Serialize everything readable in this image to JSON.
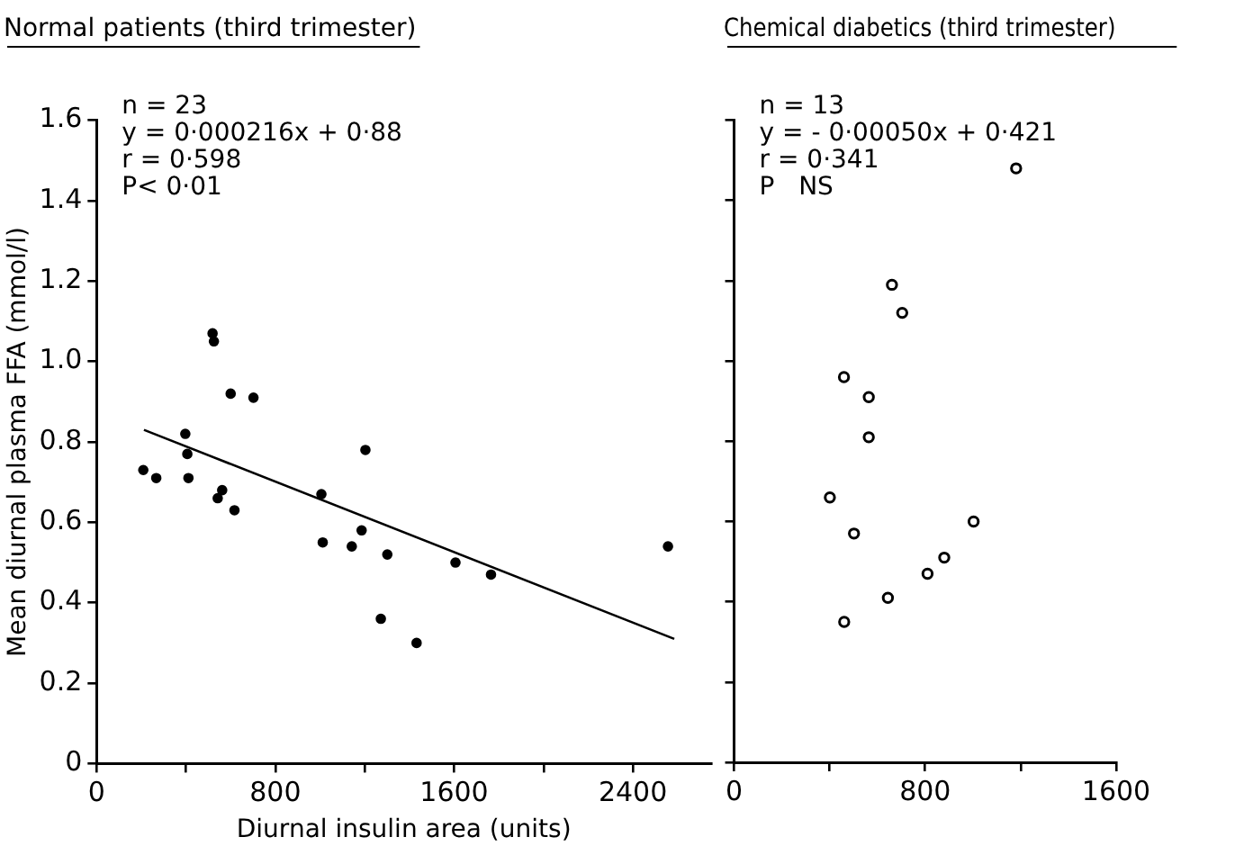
{
  "chart_data": [
    {
      "type": "scatter",
      "title": "Normal patients (third trimester)",
      "xlabel": "Diurnal insulin area (units)",
      "ylabel": "Mean diurnal plasma FFA (mmol/l)",
      "annotations": [
        "n = 23",
        "y = 0·000216x + 0·88",
        "r = 0·598",
        "P< 0·01"
      ],
      "xlim": [
        0,
        2750
      ],
      "xticks": [
        0,
        {
          "value": 400,
          "label": null
        },
        800,
        {
          "value": 1200,
          "label": null
        },
        1600,
        {
          "value": 2000,
          "label": null
        },
        2400
      ],
      "ylim": [
        0,
        1.6
      ],
      "yticks": [
        0,
        0.2,
        0.4,
        0.6,
        0.8,
        {
          "value": 1,
          "label": "1.0"
        },
        1.2,
        1.4,
        1.6
      ],
      "grid": false,
      "legend": false,
      "series": [
        {
          "marker": "circle",
          "color": "#000000",
          "x": [
            209,
            267,
            397,
            406,
            411,
            542,
            562,
            617,
            1006,
            1012,
            1142,
            1186,
            1203,
            1301,
            1272,
            1432,
            1606,
            1765,
            2557,
            519,
            525,
            600,
            702
          ],
          "values": [
            0.73,
            0.71,
            0.82,
            0.77,
            0.71,
            0.66,
            0.68,
            0.63,
            0.67,
            0.55,
            0.54,
            0.58,
            0.78,
            0.52,
            0.36,
            0.3,
            0.5,
            0.47,
            0.54,
            1.07,
            1.05,
            0.92,
            0.91
          ]
        },
        {
          "type": "line",
          "marker": "none",
          "color": "#000000",
          "x": [
            212,
            2585
          ],
          "values": [
            0.83,
            0.31
          ]
        }
      ]
    },
    {
      "type": "scatter",
      "title": "Chemical diabetics (third trimester)",
      "annotations": [
        "n = 13",
        "y = - 0·00050x + 0·421",
        "r = 0·341",
        "P   NS"
      ],
      "xlim": [
        0,
        1600
      ],
      "xticks": [
        0,
        {
          "value": 400,
          "label": null
        },
        800,
        {
          "value": 1200,
          "label": null
        },
        1600
      ],
      "ylim": [
        0,
        1.6
      ],
      "yticks": [
        0,
        0.2,
        0.4,
        0.6,
        0.8,
        1,
        1.2,
        1.4,
        1.6
      ],
      "tick_labels": "x",
      "grid": false,
      "legend": false,
      "series": [
        {
          "marker": "circle",
          "color": "#000000",
          "x": [
            564,
            401,
            502,
            461,
            644,
            810,
            880,
            1003,
            1181,
            661,
            704,
            460,
            564
          ],
          "values": [
            0.81,
            0.66,
            0.57,
            0.35,
            0.41,
            0.47,
            0.51,
            0.6,
            1.48,
            1.19,
            1.12,
            0.96,
            0.91
          ]
        }
      ]
    }
  ]
}
